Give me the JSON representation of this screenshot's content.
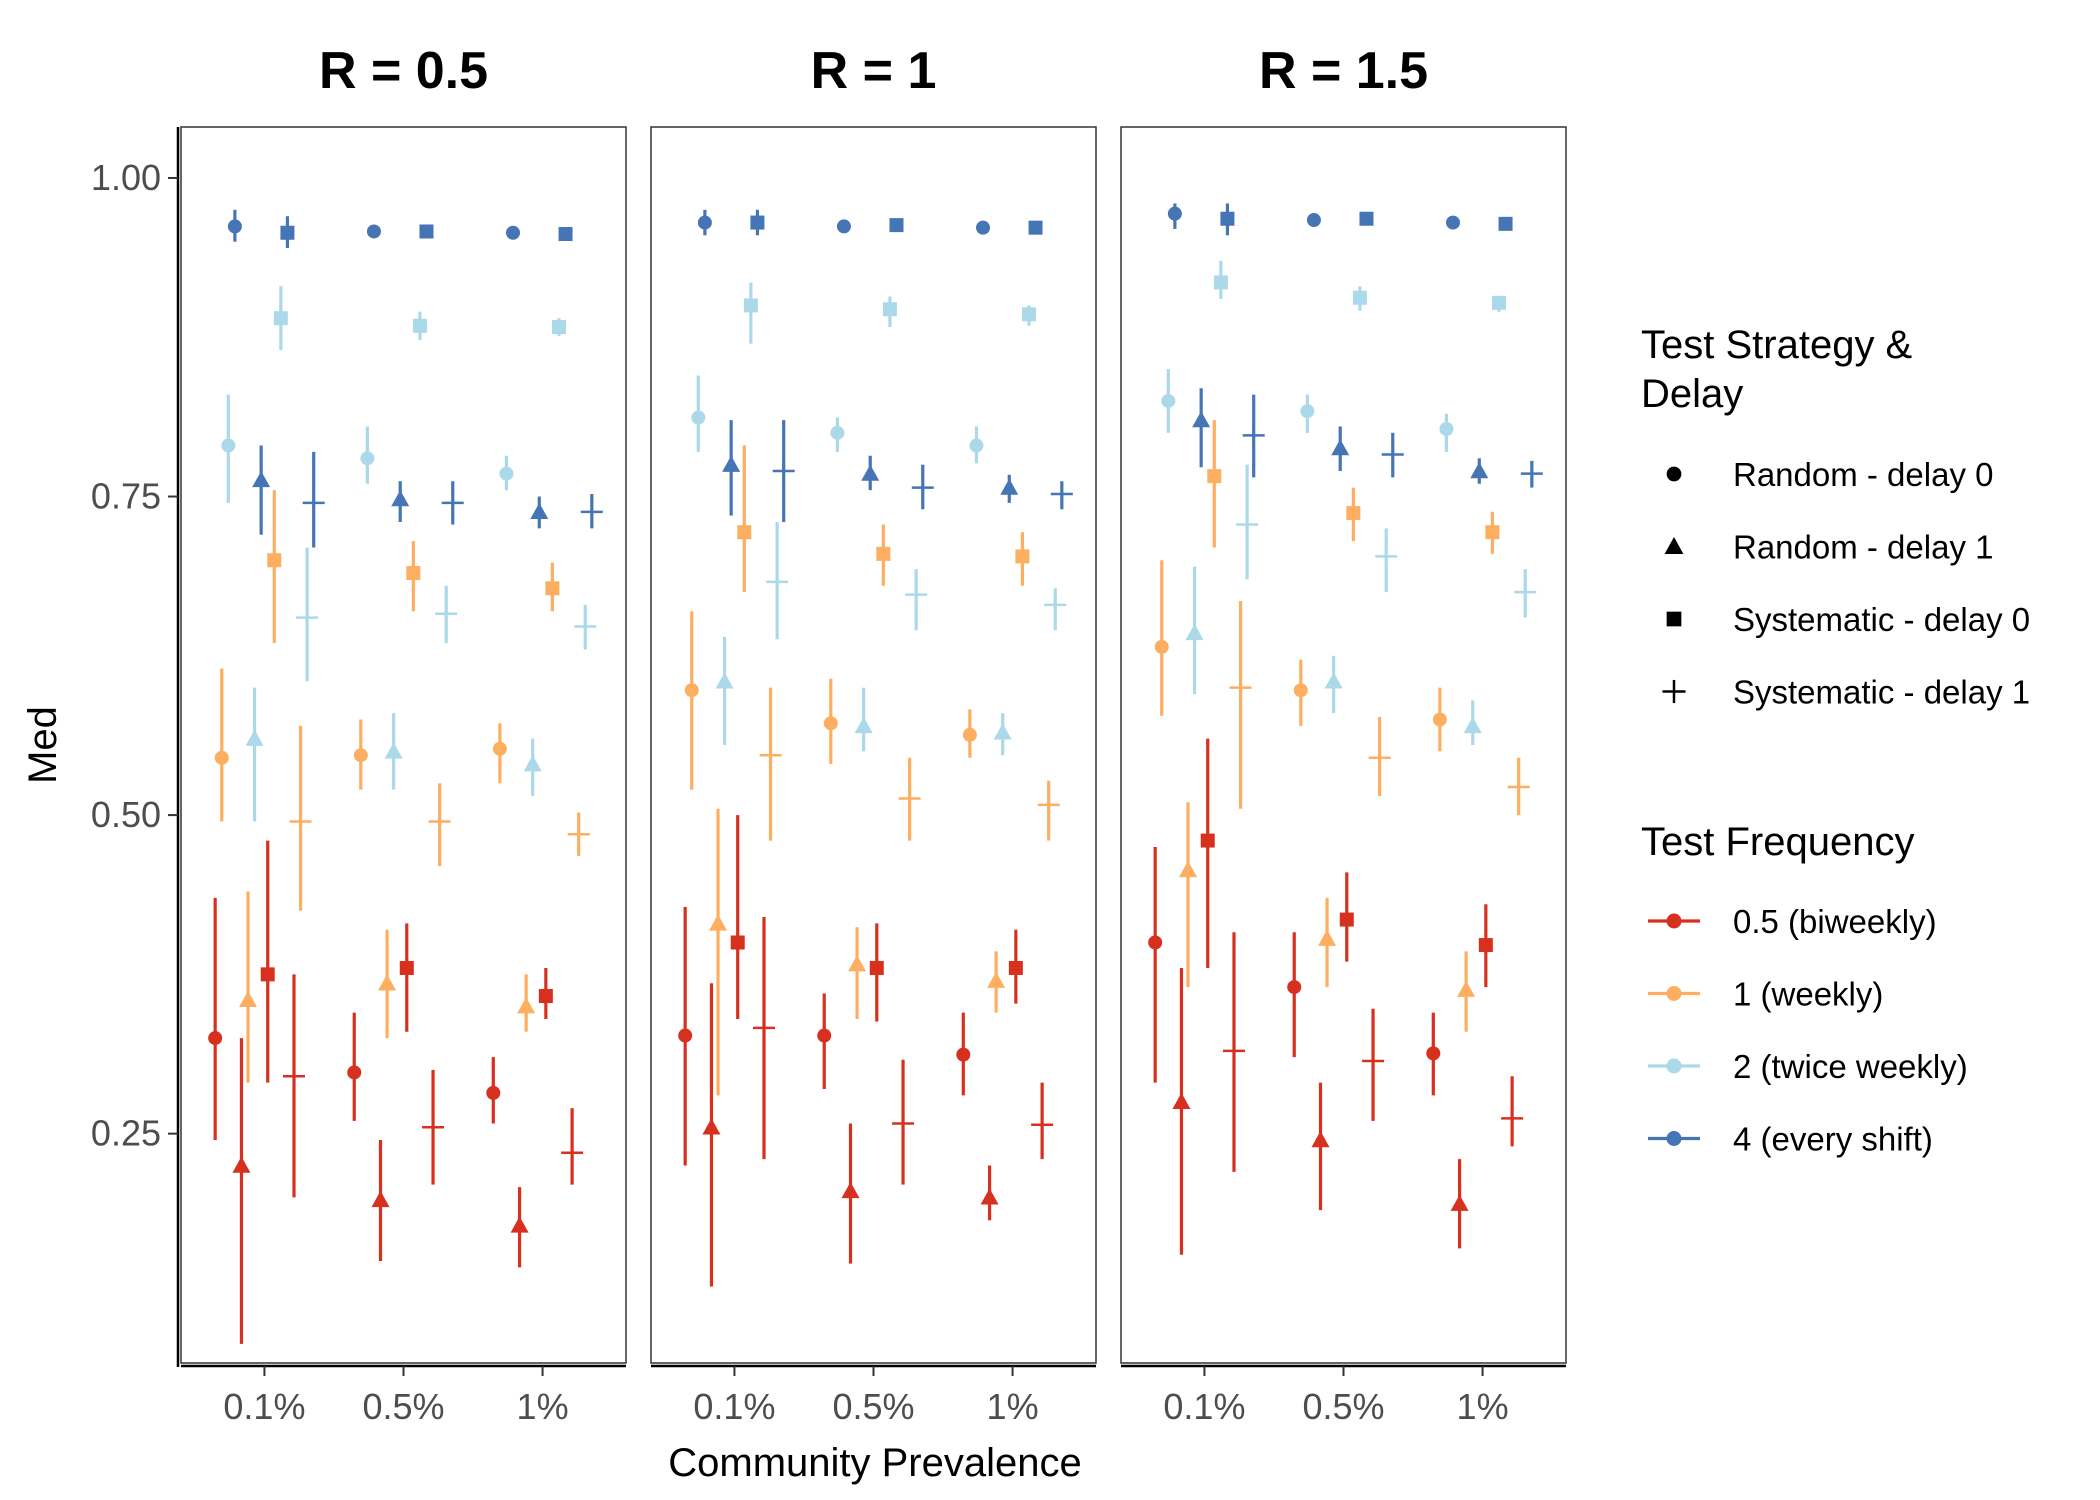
{
  "chart_data": {
    "type": "scatter",
    "subtype": "pointrange",
    "facet_labels": [
      "R = 0.5",
      "R = 1",
      "R = 1.5"
    ],
    "xlabel": "Community Prevalence",
    "ylabel": "Med",
    "x_categories": [
      "0.1%",
      "0.5%",
      "1%"
    ],
    "ylim": [
      0.07,
      1.04
    ],
    "yticks": [
      0.25,
      0.5,
      0.75,
      1.0
    ],
    "ytick_labels": [
      "0.25",
      "0.50",
      "0.75",
      "1.00"
    ],
    "grid": false,
    "strategy_legend": {
      "title_lines": [
        "Test Strategy &",
        "Delay"
      ],
      "items": [
        {
          "label": "Random - delay 0",
          "shape": "circle"
        },
        {
          "label": "Random - delay 1",
          "shape": "triangle"
        },
        {
          "label": "Systematic - delay 0",
          "shape": "square"
        },
        {
          "label": "Systematic - delay 1",
          "shape": "cross"
        }
      ]
    },
    "frequency_legend": {
      "title": "Test Frequency",
      "items": [
        {
          "label": "0.5 (biweekly)",
          "color": "#d7301f"
        },
        {
          "label": "1 (weekly)",
          "color": "#fdae61"
        },
        {
          "label": "2 (twice weekly)",
          "color": "#abd9e9"
        },
        {
          "label": "4 (every shift)",
          "color": "#4575b4"
        }
      ]
    },
    "legend_position": "right",
    "series_note": "values given per facet, per prevalence category; each entry = [median, lower, upper]; order of strategies: circle, triangle, square, cross; order of frequencies: 0.5, 1, 2, 4",
    "panels": [
      {
        "facet": "R = 0.5",
        "groups": [
          {
            "x": "0.1%",
            "freq_0.5": [
              [
                0.325,
                0.245,
                0.435
              ],
              [
                0.225,
                0.085,
                0.325
              ],
              [
                0.375,
                0.29,
                0.48
              ],
              [
                0.295,
                0.2,
                0.375
              ]
            ],
            "freq_1": [
              [
                0.545,
                0.495,
                0.615
              ],
              [
                0.355,
                0.29,
                0.44
              ],
              [
                0.7,
                0.635,
                0.755
              ],
              [
                0.495,
                0.425,
                0.57
              ]
            ],
            "freq_2": [
              [
                0.79,
                0.745,
                0.83
              ],
              [
                0.56,
                0.495,
                0.6
              ],
              [
                0.89,
                0.865,
                0.915
              ],
              [
                0.655,
                0.605,
                0.71
              ]
            ],
            "freq_4": [
              [
                0.962,
                0.95,
                0.975
              ],
              [
                0.763,
                0.72,
                0.79
              ],
              [
                0.957,
                0.945,
                0.97
              ],
              [
                0.745,
                0.71,
                0.785
              ]
            ]
          },
          {
            "x": "0.5%",
            "freq_0.5": [
              [
                0.298,
                0.26,
                0.345
              ],
              [
                0.198,
                0.15,
                0.245
              ],
              [
                0.38,
                0.33,
                0.415
              ],
              [
                0.255,
                0.21,
                0.3
              ]
            ],
            "freq_1": [
              [
                0.547,
                0.52,
                0.575
              ],
              [
                0.368,
                0.325,
                0.41
              ],
              [
                0.69,
                0.66,
                0.715
              ],
              [
                0.495,
                0.46,
                0.525
              ]
            ],
            "freq_2": [
              [
                0.78,
                0.76,
                0.805
              ],
              [
                0.55,
                0.52,
                0.58
              ],
              [
                0.884,
                0.873,
                0.895
              ],
              [
                0.658,
                0.635,
                0.68
              ]
            ],
            "freq_4": [
              [
                0.958,
                0.953,
                0.963
              ],
              [
                0.748,
                0.73,
                0.762
              ],
              [
                0.958,
                0.954,
                0.963
              ],
              [
                0.745,
                0.728,
                0.762
              ]
            ]
          },
          {
            "x": "1%",
            "freq_0.5": [
              [
                0.282,
                0.258,
                0.31
              ],
              [
                0.178,
                0.145,
                0.208
              ],
              [
                0.358,
                0.34,
                0.38
              ],
              [
                0.235,
                0.21,
                0.27
              ]
            ],
            "freq_1": [
              [
                0.552,
                0.525,
                0.572
              ],
              [
                0.35,
                0.33,
                0.375
              ],
              [
                0.678,
                0.66,
                0.698
              ],
              [
                0.485,
                0.468,
                0.502
              ]
            ],
            "freq_2": [
              [
                0.768,
                0.755,
                0.782
              ],
              [
                0.54,
                0.515,
                0.56
              ],
              [
                0.883,
                0.876,
                0.89
              ],
              [
                0.648,
                0.63,
                0.665
              ]
            ],
            "freq_4": [
              [
                0.957,
                0.953,
                0.962
              ],
              [
                0.738,
                0.725,
                0.75
              ],
              [
                0.956,
                0.952,
                0.96
              ],
              [
                0.738,
                0.725,
                0.752
              ]
            ]
          }
        ]
      },
      {
        "facet": "R = 1",
        "groups": [
          {
            "x": "0.1%",
            "freq_0.5": [
              [
                0.327,
                0.225,
                0.428
              ],
              [
                0.255,
                0.13,
                0.368
              ],
              [
                0.4,
                0.34,
                0.5
              ],
              [
                0.333,
                0.23,
                0.42
              ]
            ],
            "freq_1": [
              [
                0.598,
                0.52,
                0.66
              ],
              [
                0.415,
                0.28,
                0.505
              ],
              [
                0.722,
                0.675,
                0.79
              ],
              [
                0.547,
                0.48,
                0.6
              ]
            ],
            "freq_2": [
              [
                0.812,
                0.785,
                0.845
              ],
              [
                0.605,
                0.555,
                0.64
              ],
              [
                0.9,
                0.87,
                0.918
              ],
              [
                0.683,
                0.638,
                0.73
              ]
            ],
            "freq_4": [
              [
                0.965,
                0.955,
                0.975
              ],
              [
                0.775,
                0.735,
                0.81
              ],
              [
                0.965,
                0.955,
                0.975
              ],
              [
                0.77,
                0.73,
                0.81
              ]
            ]
          },
          {
            "x": "0.5%",
            "freq_0.5": [
              [
                0.327,
                0.285,
                0.36
              ],
              [
                0.205,
                0.148,
                0.258
              ],
              [
                0.38,
                0.338,
                0.415
              ],
              [
                0.258,
                0.21,
                0.308
              ]
            ],
            "freq_1": [
              [
                0.572,
                0.54,
                0.607
              ],
              [
                0.383,
                0.34,
                0.412
              ],
              [
                0.705,
                0.68,
                0.728
              ],
              [
                0.513,
                0.48,
                0.545
              ]
            ],
            "freq_2": [
              [
                0.8,
                0.785,
                0.812
              ],
              [
                0.57,
                0.55,
                0.6
              ],
              [
                0.897,
                0.883,
                0.907
              ],
              [
                0.673,
                0.645,
                0.693
              ]
            ],
            "freq_4": [
              [
                0.962,
                0.958,
                0.966
              ],
              [
                0.768,
                0.755,
                0.782
              ],
              [
                0.963,
                0.958,
                0.966
              ],
              [
                0.757,
                0.74,
                0.775
              ]
            ]
          },
          {
            "x": "1%",
            "freq_0.5": [
              [
                0.312,
                0.28,
                0.345
              ],
              [
                0.2,
                0.182,
                0.225
              ],
              [
                0.38,
                0.352,
                0.41
              ],
              [
                0.257,
                0.23,
                0.29
              ]
            ],
            "freq_1": [
              [
                0.563,
                0.545,
                0.583
              ],
              [
                0.37,
                0.345,
                0.393
              ],
              [
                0.703,
                0.68,
                0.722
              ],
              [
                0.508,
                0.48,
                0.527
              ]
            ],
            "freq_2": [
              [
                0.79,
                0.776,
                0.805
              ],
              [
                0.565,
                0.547,
                0.58
              ],
              [
                0.893,
                0.884,
                0.9
              ],
              [
                0.665,
                0.645,
                0.678
              ]
            ],
            "freq_4": [
              [
                0.961,
                0.957,
                0.965
              ],
              [
                0.757,
                0.745,
                0.767
              ],
              [
                0.961,
                0.957,
                0.965
              ],
              [
                0.752,
                0.74,
                0.762
              ]
            ]
          }
        ]
      },
      {
        "facet": "R = 1.5",
        "groups": [
          {
            "x": "0.1%",
            "freq_0.5": [
              [
                0.4,
                0.29,
                0.475
              ],
              [
                0.275,
                0.155,
                0.38
              ],
              [
                0.48,
                0.38,
                0.56
              ],
              [
                0.315,
                0.22,
                0.408
              ]
            ],
            "freq_1": [
              [
                0.632,
                0.578,
                0.7
              ],
              [
                0.457,
                0.365,
                0.51
              ],
              [
                0.766,
                0.71,
                0.81
              ],
              [
                0.6,
                0.505,
                0.668
              ]
            ],
            "freq_2": [
              [
                0.825,
                0.8,
                0.85
              ],
              [
                0.643,
                0.595,
                0.695
              ],
              [
                0.918,
                0.905,
                0.935
              ],
              [
                0.728,
                0.685,
                0.775
              ]
            ],
            "freq_4": [
              [
                0.972,
                0.96,
                0.98
              ],
              [
                0.81,
                0.773,
                0.835
              ],
              [
                0.968,
                0.955,
                0.98
              ],
              [
                0.798,
                0.765,
                0.83
              ]
            ]
          },
          {
            "x": "0.5%",
            "freq_0.5": [
              [
                0.365,
                0.31,
                0.408
              ],
              [
                0.245,
                0.19,
                0.29
              ],
              [
                0.418,
                0.385,
                0.455
              ],
              [
                0.307,
                0.26,
                0.348
              ]
            ],
            "freq_1": [
              [
                0.598,
                0.57,
                0.622
              ],
              [
                0.403,
                0.365,
                0.435
              ],
              [
                0.737,
                0.715,
                0.757
              ],
              [
                0.545,
                0.515,
                0.577
              ]
            ],
            "freq_2": [
              [
                0.817,
                0.8,
                0.83
              ],
              [
                0.605,
                0.58,
                0.625
              ],
              [
                0.906,
                0.896,
                0.915
              ],
              [
                0.703,
                0.675,
                0.725
              ]
            ],
            "freq_4": [
              [
                0.967,
                0.963,
                0.971
              ],
              [
                0.788,
                0.77,
                0.805
              ],
              [
                0.968,
                0.963,
                0.972
              ],
              [
                0.783,
                0.765,
                0.8
              ]
            ]
          },
          {
            "x": "1%",
            "freq_0.5": [
              [
                0.313,
                0.28,
                0.345
              ],
              [
                0.195,
                0.16,
                0.23
              ],
              [
                0.398,
                0.365,
                0.43
              ],
              [
                0.262,
                0.24,
                0.295
              ]
            ],
            "freq_1": [
              [
                0.575,
                0.55,
                0.6
              ],
              [
                0.363,
                0.33,
                0.393
              ],
              [
                0.722,
                0.705,
                0.738
              ],
              [
                0.522,
                0.5,
                0.545
              ]
            ],
            "freq_2": [
              [
                0.803,
                0.785,
                0.815
              ],
              [
                0.57,
                0.555,
                0.59
              ],
              [
                0.902,
                0.895,
                0.907
              ],
              [
                0.675,
                0.655,
                0.693
              ]
            ],
            "freq_4": [
              [
                0.965,
                0.96,
                0.969
              ],
              [
                0.77,
                0.76,
                0.78
              ],
              [
                0.964,
                0.96,
                0.968
              ],
              [
                0.768,
                0.757,
                0.778
              ]
            ]
          }
        ]
      }
    ]
  }
}
